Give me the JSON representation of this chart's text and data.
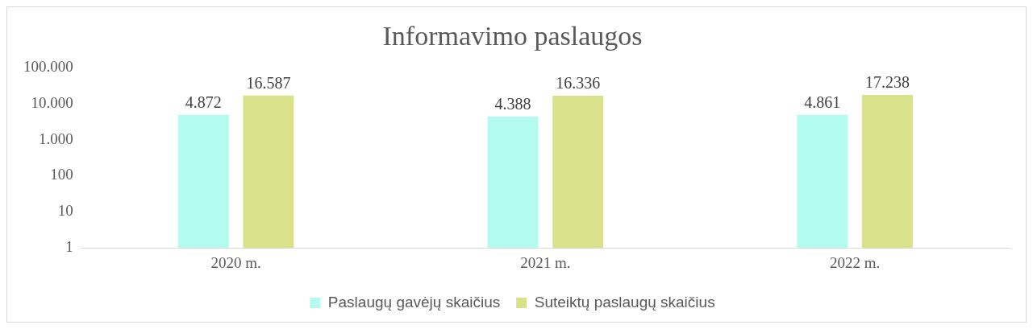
{
  "chart_data": {
    "type": "bar",
    "title": "Informavimo paslaugos",
    "categories": [
      "2020 m.",
      "2021 m.",
      "2022 m."
    ],
    "series": [
      {
        "name": "Paslaugų gavėjų skaičius",
        "color": "#b3fbee",
        "values": [
          4872,
          4388,
          4861
        ],
        "value_labels": [
          "4.872",
          "4.388",
          "4.861"
        ]
      },
      {
        "name": "Suteiktų paslaugų skaičius",
        "color": "#d9e18a",
        "values": [
          16587,
          16336,
          17238
        ],
        "value_labels": [
          "16.587",
          "16.336",
          "17.238"
        ]
      }
    ],
    "log": true,
    "ylim": [
      1,
      100000
    ],
    "yticks": [
      1,
      10,
      100,
      {
        "value": 1000,
        "label": "1.000"
      },
      {
        "value": 10000,
        "label": "10.000"
      },
      {
        "value": 100000,
        "label": "100.000"
      }
    ],
    "legend": "bottom"
  }
}
